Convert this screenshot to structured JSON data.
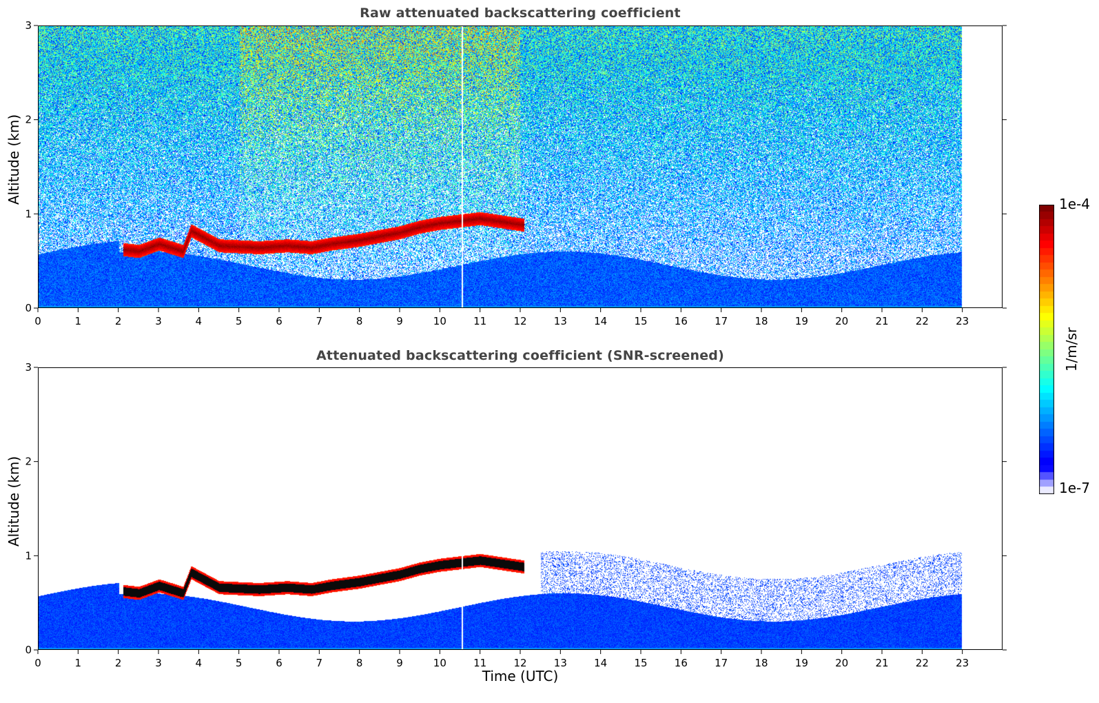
{
  "chart_data": [
    {
      "type": "heatmap",
      "title": "Raw attenuated backscattering coefficient",
      "xlabel": "",
      "ylabel": "Altitude (km)",
      "xlim": [
        0,
        24
      ],
      "ylim": [
        0,
        3
      ],
      "xticks": [
        0,
        1,
        2,
        3,
        4,
        5,
        6,
        7,
        8,
        9,
        10,
        11,
        12,
        13,
        14,
        15,
        16,
        17,
        18,
        19,
        20,
        21,
        22,
        23
      ],
      "yticks": [
        0,
        1,
        2,
        3
      ],
      "data_extent_hours": [
        0,
        23
      ],
      "cloud_layer_center_km": [
        {
          "t": 2.1,
          "z": 0.62
        },
        {
          "t": 2.5,
          "z": 0.6
        },
        {
          "t": 3.0,
          "z": 0.68
        },
        {
          "t": 3.6,
          "z": 0.6
        },
        {
          "t": 3.8,
          "z": 0.82
        },
        {
          "t": 4.5,
          "z": 0.66
        },
        {
          "t": 5.5,
          "z": 0.64
        },
        {
          "t": 6.2,
          "z": 0.66
        },
        {
          "t": 6.8,
          "z": 0.64
        },
        {
          "t": 7.3,
          "z": 0.68
        },
        {
          "t": 8.0,
          "z": 0.72
        },
        {
          "t": 9.0,
          "z": 0.8
        },
        {
          "t": 9.5,
          "z": 0.86
        },
        {
          "t": 10.0,
          "z": 0.9
        },
        {
          "t": 11.0,
          "z": 0.95
        },
        {
          "t": 12.1,
          "z": 0.88
        }
      ]
    },
    {
      "type": "heatmap",
      "title": "Attenuated backscattering coefficient (SNR-screened)",
      "xlabel": "Time (UTC)",
      "ylabel": "Altitude (km)",
      "xlim": [
        0,
        24
      ],
      "ylim": [
        0,
        3
      ],
      "xticks": [
        0,
        1,
        2,
        3,
        4,
        5,
        6,
        7,
        8,
        9,
        10,
        11,
        12,
        13,
        14,
        15,
        16,
        17,
        18,
        19,
        20,
        21,
        22,
        23
      ],
      "yticks": [
        0,
        1,
        2,
        3
      ],
      "data_extent_hours": [
        0,
        23
      ],
      "cloud_layer_center_km": [
        {
          "t": 2.1,
          "z": 0.62
        },
        {
          "t": 2.5,
          "z": 0.6
        },
        {
          "t": 3.0,
          "z": 0.68
        },
        {
          "t": 3.6,
          "z": 0.6
        },
        {
          "t": 3.8,
          "z": 0.82
        },
        {
          "t": 4.5,
          "z": 0.66
        },
        {
          "t": 5.5,
          "z": 0.64
        },
        {
          "t": 6.2,
          "z": 0.66
        },
        {
          "t": 6.8,
          "z": 0.64
        },
        {
          "t": 7.3,
          "z": 0.68
        },
        {
          "t": 8.0,
          "z": 0.72
        },
        {
          "t": 9.0,
          "z": 0.8
        },
        {
          "t": 9.5,
          "z": 0.86
        },
        {
          "t": 10.0,
          "z": 0.9
        },
        {
          "t": 11.0,
          "z": 0.95
        },
        {
          "t": 12.1,
          "z": 0.88
        }
      ]
    }
  ],
  "colorbar": {
    "min_label": "1e-7",
    "max_label": "1e-4",
    "unit_label": "1/m/sr",
    "colormap": "jet",
    "low_color": "#f0f0ff",
    "high_color": "#800000"
  }
}
